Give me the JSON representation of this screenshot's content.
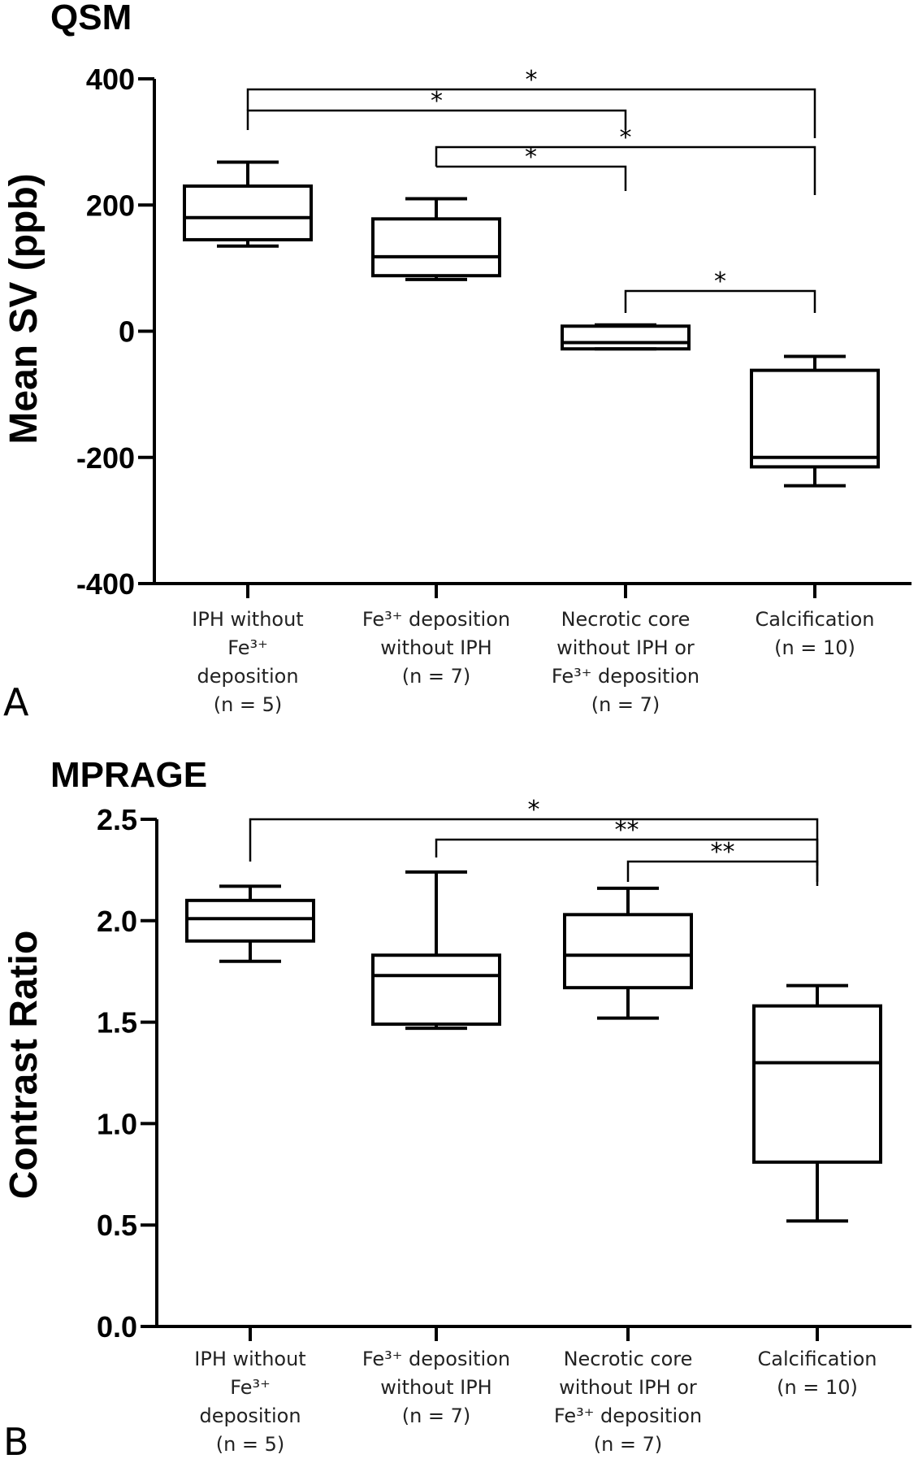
{
  "chart_data": [
    {
      "panel": "A",
      "type": "box",
      "title": "QSM",
      "ylabel": "Mean SV (ppb)",
      "ylim": [
        -400,
        400
      ],
      "yticks": [
        "400",
        "200",
        "0",
        "-200",
        "-400"
      ],
      "categories": [
        {
          "lines": [
            "IPH without",
            "Fe³⁺",
            "deposition"
          ],
          "n": "(n = 5)"
        },
        {
          "lines": [
            "Fe³⁺ deposition",
            "without IPH"
          ],
          "n": "(n = 7)"
        },
        {
          "lines": [
            "Necrotic core",
            "without IPH or",
            "Fe³⁺ deposition"
          ],
          "n": "(n = 7)"
        },
        {
          "lines": [
            "Calcification"
          ],
          "n": "(n = 10)"
        }
      ],
      "boxes": [
        {
          "min": 135,
          "q1": 145,
          "median": 180,
          "q3": 230,
          "max": 268
        },
        {
          "min": 82,
          "q1": 88,
          "median": 118,
          "q3": 178,
          "max": 210
        },
        {
          "min": -28,
          "q1": -28,
          "median": -18,
          "q3": 8,
          "max": 10
        },
        {
          "min": -245,
          "q1": -215,
          "median": -200,
          "q3": -62,
          "max": -40
        }
      ],
      "significance": [
        {
          "from": 0,
          "to": 3,
          "label": "*"
        },
        {
          "from": 0,
          "to": 2,
          "label": "*"
        },
        {
          "from": 1,
          "to": 3,
          "label": "*"
        },
        {
          "from": 1,
          "to": 2,
          "label": "*"
        },
        {
          "from": 2,
          "to": 3,
          "label": "*"
        }
      ]
    },
    {
      "panel": "B",
      "type": "box",
      "title": "MPRAGE",
      "ylabel": "Contrast Ratio",
      "ylim": [
        0,
        2.5
      ],
      "yticks": [
        "2.5",
        "2.0",
        "1.5",
        "1.0",
        "0.5",
        "0.0"
      ],
      "categories": [
        {
          "lines": [
            "IPH without",
            "Fe³⁺",
            "deposition"
          ],
          "n": "(n = 5)"
        },
        {
          "lines": [
            "Fe³⁺ deposition",
            "without IPH"
          ],
          "n": "(n = 7)"
        },
        {
          "lines": [
            "Necrotic core",
            "without IPH or",
            "Fe³⁺ deposition"
          ],
          "n": "(n = 7)"
        },
        {
          "lines": [
            "Calcification"
          ],
          "n": "(n = 10)"
        }
      ],
      "boxes": [
        {
          "min": 1.8,
          "q1": 1.9,
          "median": 2.01,
          "q3": 2.1,
          "max": 2.17
        },
        {
          "min": 1.47,
          "q1": 1.49,
          "median": 1.73,
          "q3": 1.83,
          "max": 2.24
        },
        {
          "min": 1.52,
          "q1": 1.67,
          "median": 1.83,
          "q3": 2.03,
          "max": 2.16
        },
        {
          "min": 0.52,
          "q1": 0.81,
          "median": 1.3,
          "q3": 1.58,
          "max": 1.68
        }
      ],
      "significance": [
        {
          "from": 0,
          "to": 3,
          "label": "*"
        },
        {
          "from": 1,
          "to": 3,
          "label": "**"
        },
        {
          "from": 2,
          "to": 3,
          "label": "**"
        }
      ]
    }
  ]
}
